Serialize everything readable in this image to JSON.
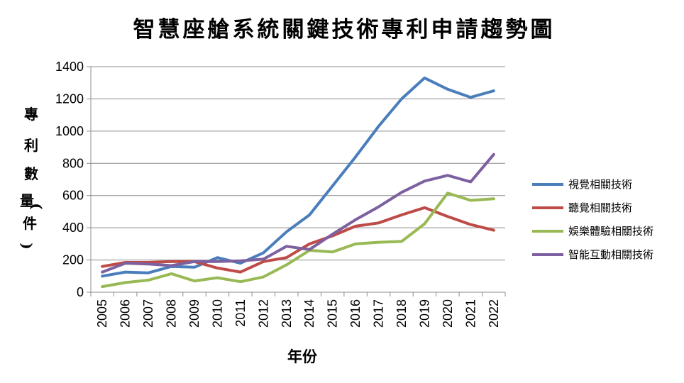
{
  "chart_data": {
    "type": "line",
    "title": "智慧座艙系統關鍵技術專利申請趨勢圖",
    "xlabel": "年份",
    "ylabel": "專利數量(件)",
    "ylim": [
      0,
      1400
    ],
    "yticks": [
      0,
      200,
      400,
      600,
      800,
      1000,
      1200,
      1400
    ],
    "grid": true,
    "legend_position": "right",
    "categories": [
      "2005",
      "2006",
      "2007",
      "2008",
      "2009",
      "2010",
      "2011",
      "2012",
      "2013",
      "2014",
      "2015",
      "2016",
      "2017",
      "2018",
      "2019",
      "2020",
      "2021",
      "2022"
    ],
    "series": [
      {
        "name": "視覺相關技術",
        "color": "#4a7ebb",
        "values": [
          100,
          125,
          120,
          160,
          155,
          215,
          180,
          245,
          375,
          480,
          660,
          840,
          1030,
          1200,
          1330,
          1260,
          1210,
          1250
        ]
      },
      {
        "name": "聽覺相關技術",
        "color": "#be4b48",
        "values": [
          160,
          185,
          185,
          190,
          190,
          150,
          125,
          190,
          215,
          300,
          350,
          410,
          430,
          480,
          525,
          470,
          420,
          385
        ]
      },
      {
        "name": "娛樂體驗相關技術",
        "color": "#98b954",
        "values": [
          35,
          60,
          75,
          115,
          70,
          90,
          65,
          95,
          170,
          260,
          250,
          300,
          310,
          315,
          425,
          615,
          570,
          580
        ]
      },
      {
        "name": "智能互動相關技術",
        "color": "#7d60a0",
        "values": [
          125,
          180,
          175,
          165,
          190,
          190,
          195,
          205,
          285,
          265,
          360,
          450,
          530,
          620,
          690,
          725,
          685,
          855
        ]
      }
    ]
  }
}
